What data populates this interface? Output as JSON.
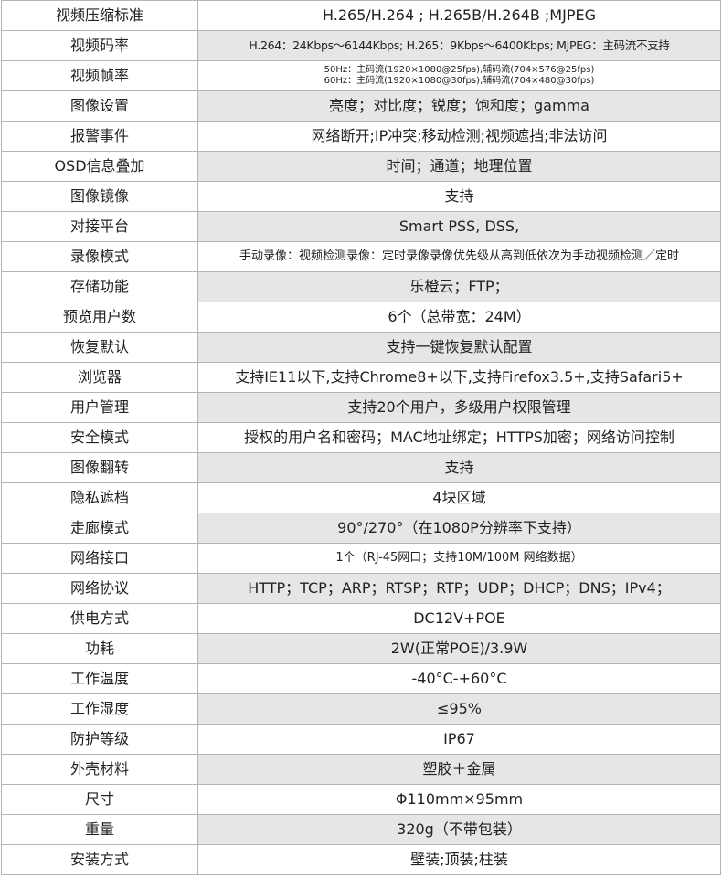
{
  "rows": [
    {
      "label": "视频压缩标准",
      "value": "H.265/H.264 ; H.265B/H.264B ;MJPEG"
    },
    {
      "label": "视频码率",
      "value": "H.264：24Kbps～6144Kbps; H.265：9Kbps～6400Kbps; MJPEG：主码流不支持"
    },
    {
      "label": "视频帧率",
      "value": "50Hz：主码流(1920×1080@25fps),辅码流(704×576@25fps)",
      "value2": "60Hz：主码流(1920×1080@30fps),辅码流(704×480@30fps)"
    },
    {
      "label": "图像设置",
      "value": "亮度；对比度；锐度；饱和度；gamma"
    },
    {
      "label": "报警事件",
      "value": "网络断开;IP冲突;移动检测;视频遮挡;非法访问"
    },
    {
      "label": "OSD信息叠加",
      "value": "时间；通道；地理位置"
    },
    {
      "label": "图像镜像",
      "value": "支持"
    },
    {
      "label": "对接平台",
      "value": "Smart PSS, DSS,"
    },
    {
      "label": "录像模式",
      "value": "手动录像：视频检测录像：定时录像录像优先级从高到低依次为手动视频检测／定时"
    },
    {
      "label": "存储功能",
      "value": "乐橙云；FTP；"
    },
    {
      "label": "预览用户数",
      "value": "6个（总带宽：24M）"
    },
    {
      "label": "恢复默认",
      "value": "支持一键恢复默认配置"
    },
    {
      "label": "浏览器",
      "value": "支持IE11以下,支持Chrome8+以下,支持Firefox3.5+,支持Safari5+"
    },
    {
      "label": "用户管理",
      "value": "支持20个用户，多级用户权限管理"
    },
    {
      "label": "安全模式",
      "value": "授权的用户名和密码；MAC地址绑定；HTTPS加密；网络访问控制"
    },
    {
      "label": "图像翻转",
      "value": "支持"
    },
    {
      "label": "隐私遮档",
      "value": "4块区域"
    },
    {
      "label": "走廊模式",
      "value": "90°/270°（在1080P分辨率下支持）"
    },
    {
      "label": "网络接口",
      "value": "1个（RJ-45网口；支持10M/100M 网络数据）"
    },
    {
      "label": "网络协议",
      "value": "HTTP；TCP；ARP；RTSP；RTP；UDP；DHCP；DNS；IPv4；"
    },
    {
      "label": "供电方式",
      "value": "DC12V+POE"
    },
    {
      "label": "功耗",
      "value": "2W(正常POE)/3.9W"
    },
    {
      "label": "工作温度",
      "value": "-40°C-+60°C"
    },
    {
      "label": "工作湿度",
      "value": "≤95%"
    },
    {
      "label": "防护等级",
      "value": "IP67"
    },
    {
      "label": "外壳材料",
      "value": "塑胶＋金属"
    },
    {
      "label": "尺寸",
      "value": "Φ110mm×95mm"
    },
    {
      "label": "重量",
      "value": "320g（不带包装）"
    },
    {
      "label": "安装方式",
      "value": "壁装;顶装;柱装"
    }
  ]
}
